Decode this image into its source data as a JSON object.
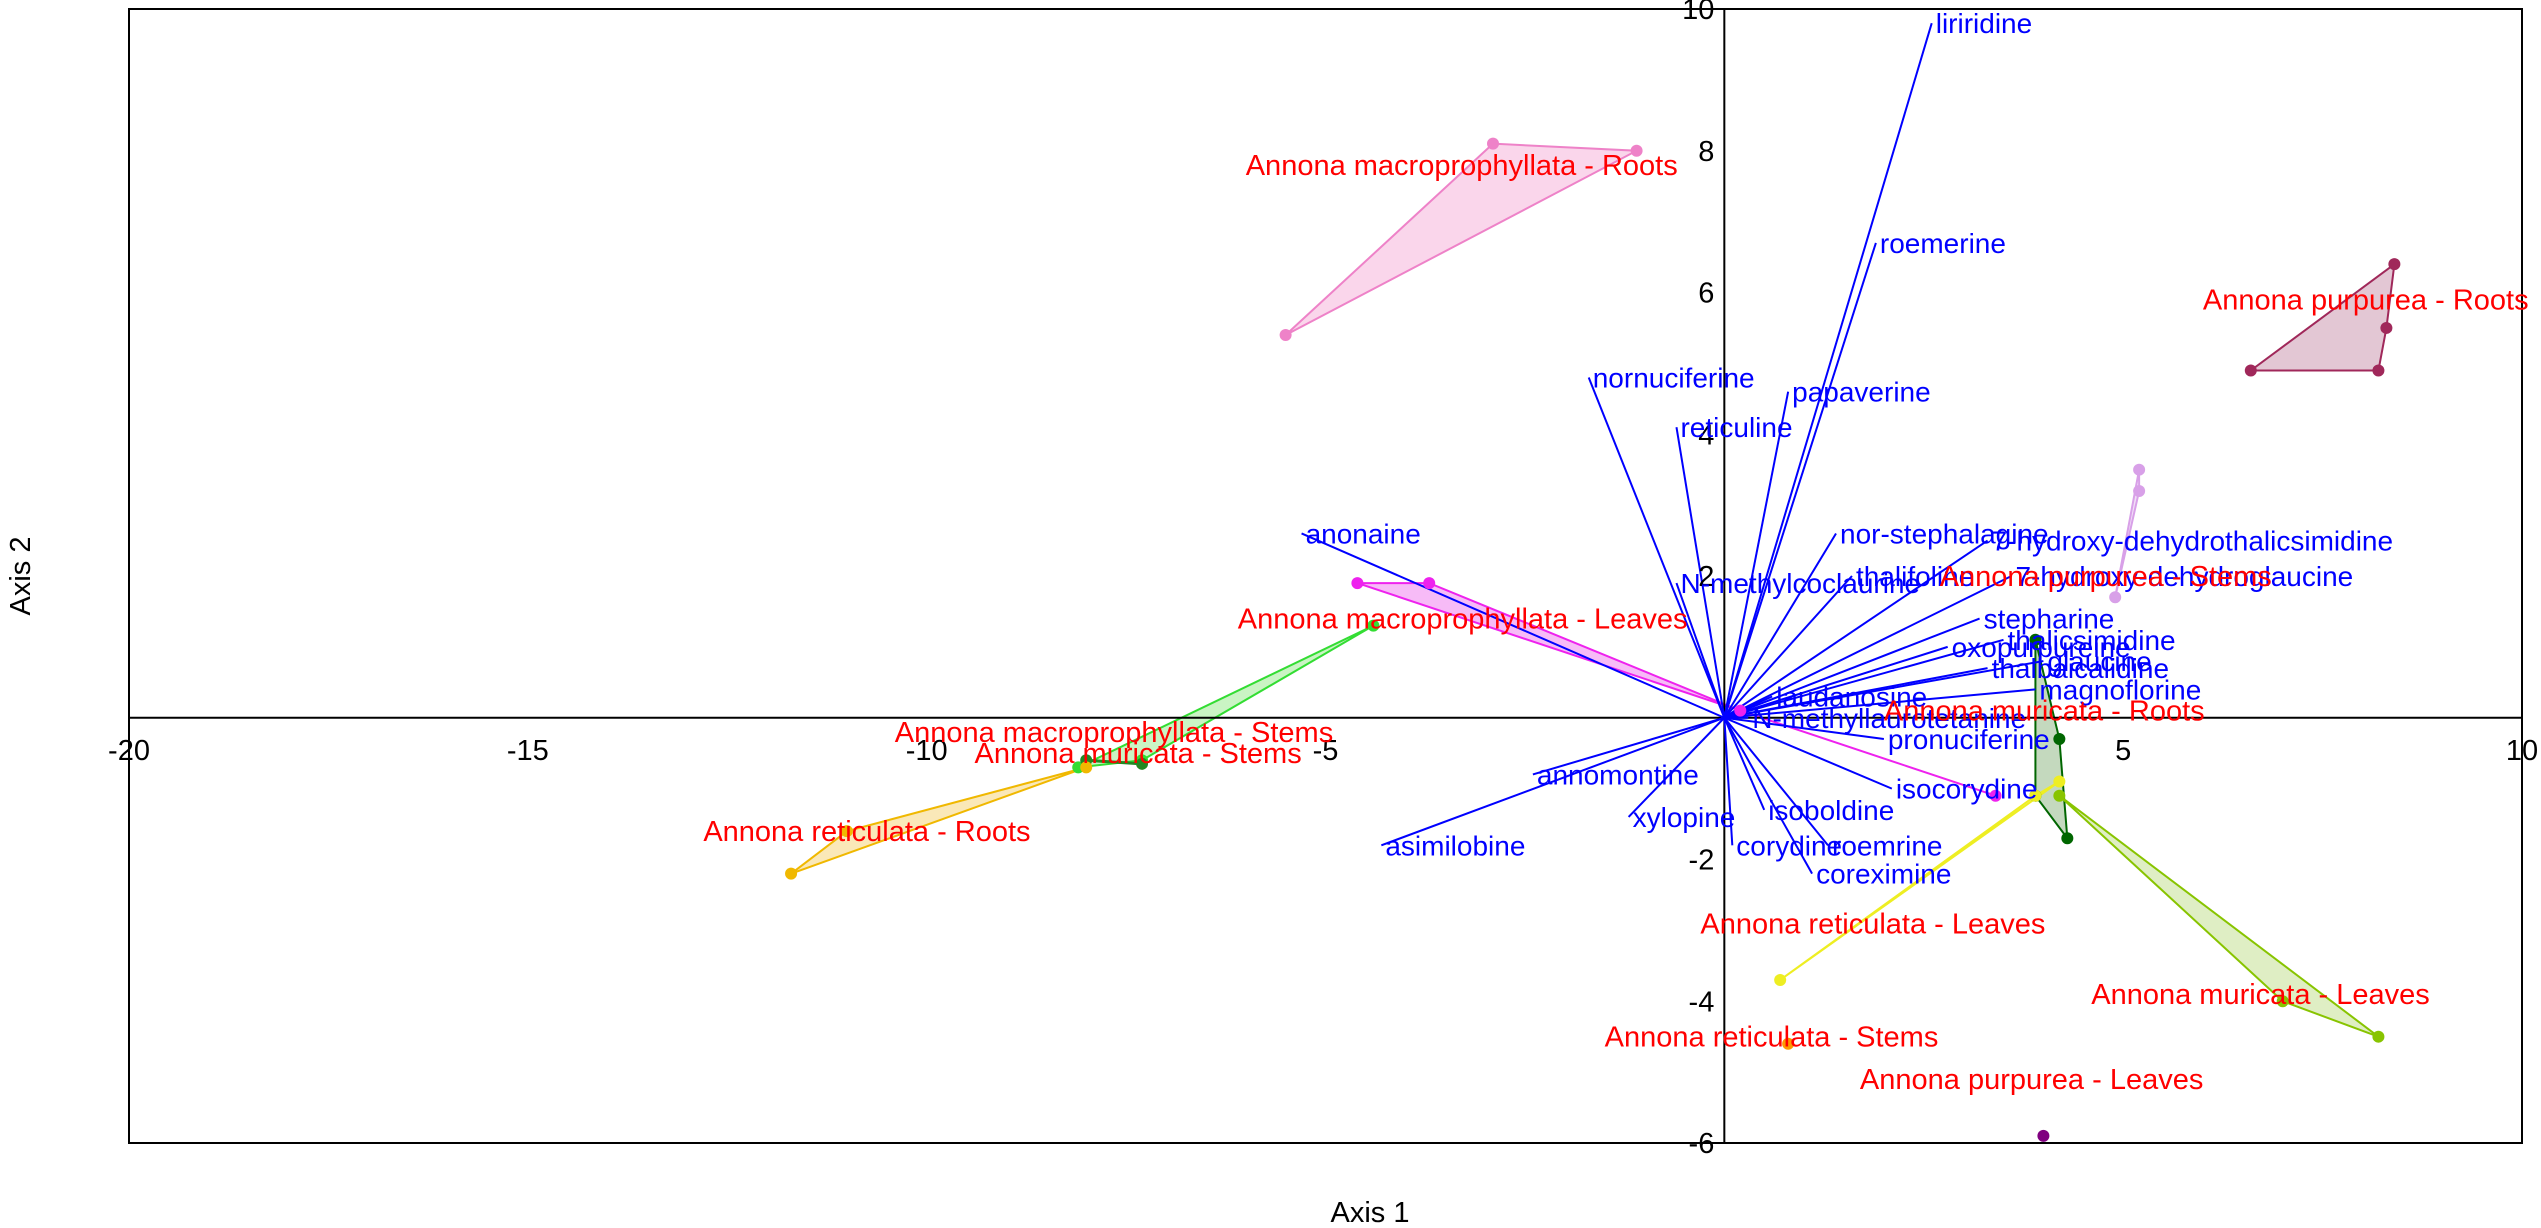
{
  "chart_data": {
    "type": "scatter",
    "subtype": "pca-biplot",
    "xlabel": "Axis 1",
    "ylabel": "Axis 2",
    "xlim": [
      -20,
      10
    ],
    "ylim": [
      -6,
      10
    ],
    "x_ticks": [
      -20,
      -15,
      -10,
      -5,
      5,
      10
    ],
    "y_ticks": [
      -6,
      -4,
      -2,
      2,
      4,
      6,
      8,
      10
    ],
    "colors": {
      "vector": "#0000ff",
      "vector_label": "#0000ff",
      "group_label": "#ff0000",
      "axis": "#000000"
    },
    "vectors": [
      {
        "name": "liriridine",
        "x": 2.6,
        "y": 9.8
      },
      {
        "name": "roemerine",
        "x": 1.9,
        "y": 6.7
      },
      {
        "name": "nornuciferine",
        "x": -1.7,
        "y": 4.8
      },
      {
        "name": "papaverine",
        "x": 0.8,
        "y": 4.6
      },
      {
        "name": "reticuline",
        "x": -0.6,
        "y": 4.1
      },
      {
        "name": "nor-stephalagine",
        "x": 1.4,
        "y": 2.6
      },
      {
        "name": "anonaine",
        "x": -5.3,
        "y": 2.6
      },
      {
        "name": "thalifoline",
        "x": 1.6,
        "y": 2.0
      },
      {
        "name": "N-methylcoclaurine",
        "x": -0.6,
        "y": 1.9
      },
      {
        "name": "7-hydroxy-dehydrothalicsimidine",
        "x": 3.3,
        "y": 2.5
      },
      {
        "name": "7-hydroxy-dehydroglaucine",
        "x": 3.6,
        "y": 2.0
      },
      {
        "name": "stepharine",
        "x": 3.2,
        "y": 1.4
      },
      {
        "name": "thalicsimidine",
        "x": 3.5,
        "y": 1.1
      },
      {
        "name": "oxopurpureine",
        "x": 2.8,
        "y": 1.0
      },
      {
        "name": "glaucine",
        "x": 4.0,
        "y": 0.8
      },
      {
        "name": "thalbaicalidine",
        "x": 3.3,
        "y": 0.7
      },
      {
        "name": "magnoflorine",
        "x": 3.9,
        "y": 0.4
      },
      {
        "name": "laudanosine",
        "x": 0.6,
        "y": 0.3
      },
      {
        "name": "N-methyllaurotetanine",
        "x": 0.3,
        "y": 0.0
      },
      {
        "name": "pronuciferine",
        "x": 2.0,
        "y": -0.3
      },
      {
        "name": "isocorydine",
        "x": 2.1,
        "y": -1.0
      },
      {
        "name": "annomontine",
        "x": -2.4,
        "y": -0.8
      },
      {
        "name": "xylopine",
        "x": -1.2,
        "y": -1.4
      },
      {
        "name": "isoboldine",
        "x": 0.5,
        "y": -1.3
      },
      {
        "name": "corydine",
        "x": 0.1,
        "y": -1.8
      },
      {
        "name": "roemrine",
        "x": 1.3,
        "y": -1.8
      },
      {
        "name": "coreximine",
        "x": 1.1,
        "y": -2.2
      },
      {
        "name": "asimilobine",
        "x": -4.3,
        "y": -1.8
      }
    ],
    "groups": [
      {
        "name": "Annona macroprophyllata - Roots",
        "color": "#ee82c8",
        "fill": "#f8c8e4",
        "points": [
          [
            -5.5,
            5.4
          ],
          [
            -2.9,
            8.1
          ],
          [
            -1.1,
            8.0
          ]
        ],
        "label_pos": [
          -6.0,
          7.8
        ]
      },
      {
        "name": "Annona purpurea - Roots",
        "color": "#a0285a",
        "fill": "#dab4c6",
        "points": [
          [
            6.6,
            4.9
          ],
          [
            8.2,
            4.9
          ],
          [
            8.3,
            5.5
          ],
          [
            8.4,
            6.4
          ]
        ],
        "label_pos": [
          6.0,
          5.9
        ]
      },
      {
        "name": "Annona macroprophyllata - Leaves",
        "color": "#ee22ee",
        "fill": "#f4a4f4",
        "points": [
          [
            -4.6,
            1.9
          ],
          [
            -3.7,
            1.9
          ],
          [
            0.2,
            0.1
          ],
          [
            3.4,
            -1.1
          ]
        ],
        "label_pos": [
          -6.1,
          1.4
        ]
      },
      {
        "name": "Annona macroprophyllata - Stems",
        "color": "#33dd33",
        "fill": "#b8f0b0",
        "points": [
          [
            -4.4,
            1.3
          ],
          [
            -7.3,
            -0.6
          ],
          [
            -8.1,
            -0.7
          ]
        ],
        "label_pos": [
          -10.4,
          -0.2
        ]
      },
      {
        "name": "Annona muricata - Stems",
        "color": "#228822",
        "fill": "#a8d8a8",
        "points": [
          [
            -8.0,
            -0.6
          ],
          [
            -7.3,
            -0.65
          ]
        ],
        "label_pos": [
          -9.4,
          -0.5
        ]
      },
      {
        "name": "Annona reticulata - Roots",
        "color": "#f0b800",
        "fill": "#f8e0a0",
        "points": [
          [
            -11.7,
            -2.2
          ],
          [
            -11.0,
            -1.6
          ],
          [
            -8.0,
            -0.7
          ]
        ],
        "label_pos": [
          -12.8,
          -1.6
        ]
      },
      {
        "name": "Annona purpurea - Stems",
        "color": "#d8a0e8",
        "fill": "#ecd4f4",
        "points": [
          [
            5.2,
            3.5
          ],
          [
            5.2,
            3.2
          ],
          [
            4.9,
            1.7
          ]
        ],
        "label_pos": [
          2.7,
          2.0
        ]
      },
      {
        "name": "Annona muricata - Roots",
        "color": "#006600",
        "fill": "#b0cca8",
        "points": [
          [
            3.9,
            1.1
          ],
          [
            4.2,
            -0.3
          ],
          [
            4.3,
            -1.7
          ],
          [
            3.9,
            -1.1
          ]
        ],
        "label_pos": [
          2.0,
          0.1
        ]
      },
      {
        "name": "Annona reticulata - Leaves",
        "color": "#eeee22",
        "fill": "#f4f4a0",
        "points": [
          [
            0.7,
            -3.7
          ],
          [
            3.9,
            -1.1
          ],
          [
            4.2,
            -0.9
          ]
        ],
        "label_pos": [
          -0.3,
          -2.9
        ]
      },
      {
        "name": "Annona muricata - Leaves",
        "color": "#88c400",
        "fill": "#d4e8b0",
        "points": [
          [
            4.2,
            -1.1
          ],
          [
            7.0,
            -4.0
          ],
          [
            8.2,
            -4.5
          ]
        ],
        "label_pos": [
          4.6,
          -3.9
        ]
      },
      {
        "name": "Annona reticulata - Stems",
        "color": "#ff9900",
        "fill": "#ffd8a0",
        "points": [
          [
            0.8,
            -4.6
          ]
        ],
        "label_pos": [
          -1.5,
          -4.5
        ]
      },
      {
        "name": "Annona purpurea - Leaves",
        "color": "#800080",
        "fill": "#d0a0d0",
        "points": [
          [
            4.0,
            -5.9
          ]
        ],
        "label_pos": [
          1.7,
          -5.1
        ]
      }
    ]
  }
}
